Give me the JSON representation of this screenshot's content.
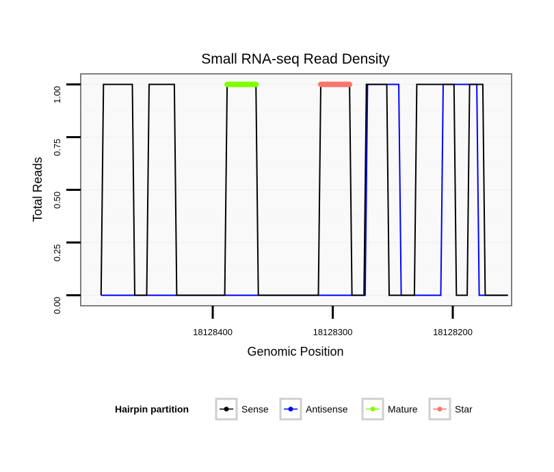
{
  "chart_data": {
    "type": "line",
    "title": "Small RNA-seq Read Density",
    "xlabel": "Genomic Position",
    "ylabel": "Total Reads",
    "x_reversed": true,
    "xlim": [
      18128510,
      18128151
    ],
    "ylim": [
      -0.05,
      1.05
    ],
    "x_ticks": [
      18128400,
      18128300,
      18128200
    ],
    "x_tick_labels": [
      "18128400",
      "18128300",
      "18128200"
    ],
    "y_ticks": [
      0,
      0.25,
      0.5,
      0.75,
      1
    ],
    "y_tick_labels": [
      "0.00",
      "0.25",
      "0.50",
      "0.75",
      "1.00"
    ],
    "grid": true,
    "legend_position": "bottom",
    "legend_title": "Hairpin partition",
    "series": [
      {
        "name": "Sense",
        "color": "#000000",
        "x": [
          18128493,
          18128491,
          18128467,
          18128465,
          18128455,
          18128453,
          18128432,
          18128430,
          18128390,
          18128388,
          18128364,
          18128362,
          18128312,
          18128310,
          18128286,
          18128284,
          18128274,
          18128272,
          18128255,
          18128253,
          18128232,
          18128230,
          18128199,
          18128197,
          18128188,
          18128186,
          18128175,
          18128173,
          18128154
        ],
        "y": [
          0,
          1,
          1,
          0,
          0,
          1,
          1,
          0,
          0,
          1,
          1,
          0,
          0,
          1,
          1,
          0,
          0,
          1,
          1,
          0,
          0,
          1,
          1,
          0,
          0,
          1,
          1,
          0,
          0
        ]
      },
      {
        "name": "Antisense",
        "color": "#0000ff",
        "x": [
          18128493,
          18128273,
          18128271,
          18128245,
          18128243,
          18128210,
          18128208,
          18128180,
          18128178,
          18128154
        ],
        "y": [
          0,
          0,
          1,
          1,
          0,
          0,
          1,
          1,
          0,
          0
        ]
      }
    ],
    "annotations": [
      {
        "name": "Mature",
        "color": "#7fff00",
        "x_start": 18128388,
        "x_end": 18128364,
        "y": 1
      },
      {
        "name": "Star",
        "color": "#f8766d",
        "x_start": 18128310,
        "x_end": 18128286,
        "y": 1
      }
    ],
    "legend": [
      {
        "label": "Sense",
        "color": "#000000"
      },
      {
        "label": "Antisense",
        "color": "#0000ff"
      },
      {
        "label": "Mature",
        "color": "#7fff00"
      },
      {
        "label": "Star",
        "color": "#f8766d"
      }
    ]
  }
}
